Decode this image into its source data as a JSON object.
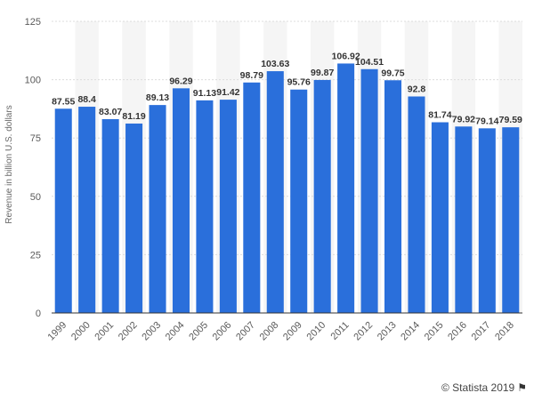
{
  "chart_data": {
    "type": "bar",
    "title": "",
    "xlabel": "",
    "ylabel": "Revenue in billion U.S. dollars",
    "ylim": [
      0,
      125
    ],
    "yticks": [
      0,
      25,
      50,
      75,
      100,
      125
    ],
    "categories": [
      "1999",
      "2000",
      "2001",
      "2002",
      "2003",
      "2004",
      "2005",
      "2006",
      "2007",
      "2008",
      "2009",
      "2010",
      "2011",
      "2012",
      "2013",
      "2014",
      "2015",
      "2016",
      "2017",
      "2018"
    ],
    "values": [
      87.55,
      88.4,
      83.07,
      81.19,
      89.13,
      96.29,
      91.13,
      91.42,
      98.79,
      103.63,
      95.76,
      99.87,
      106.92,
      104.51,
      99.75,
      92.8,
      81.74,
      79.92,
      79.14,
      79.59
    ],
    "bar_color": "#2a6fdb",
    "band_color": "#f5f5f5",
    "grid": true,
    "legend": "none"
  },
  "footer": {
    "credit": "© Statista 2019",
    "flag_icon": "flag-icon"
  }
}
